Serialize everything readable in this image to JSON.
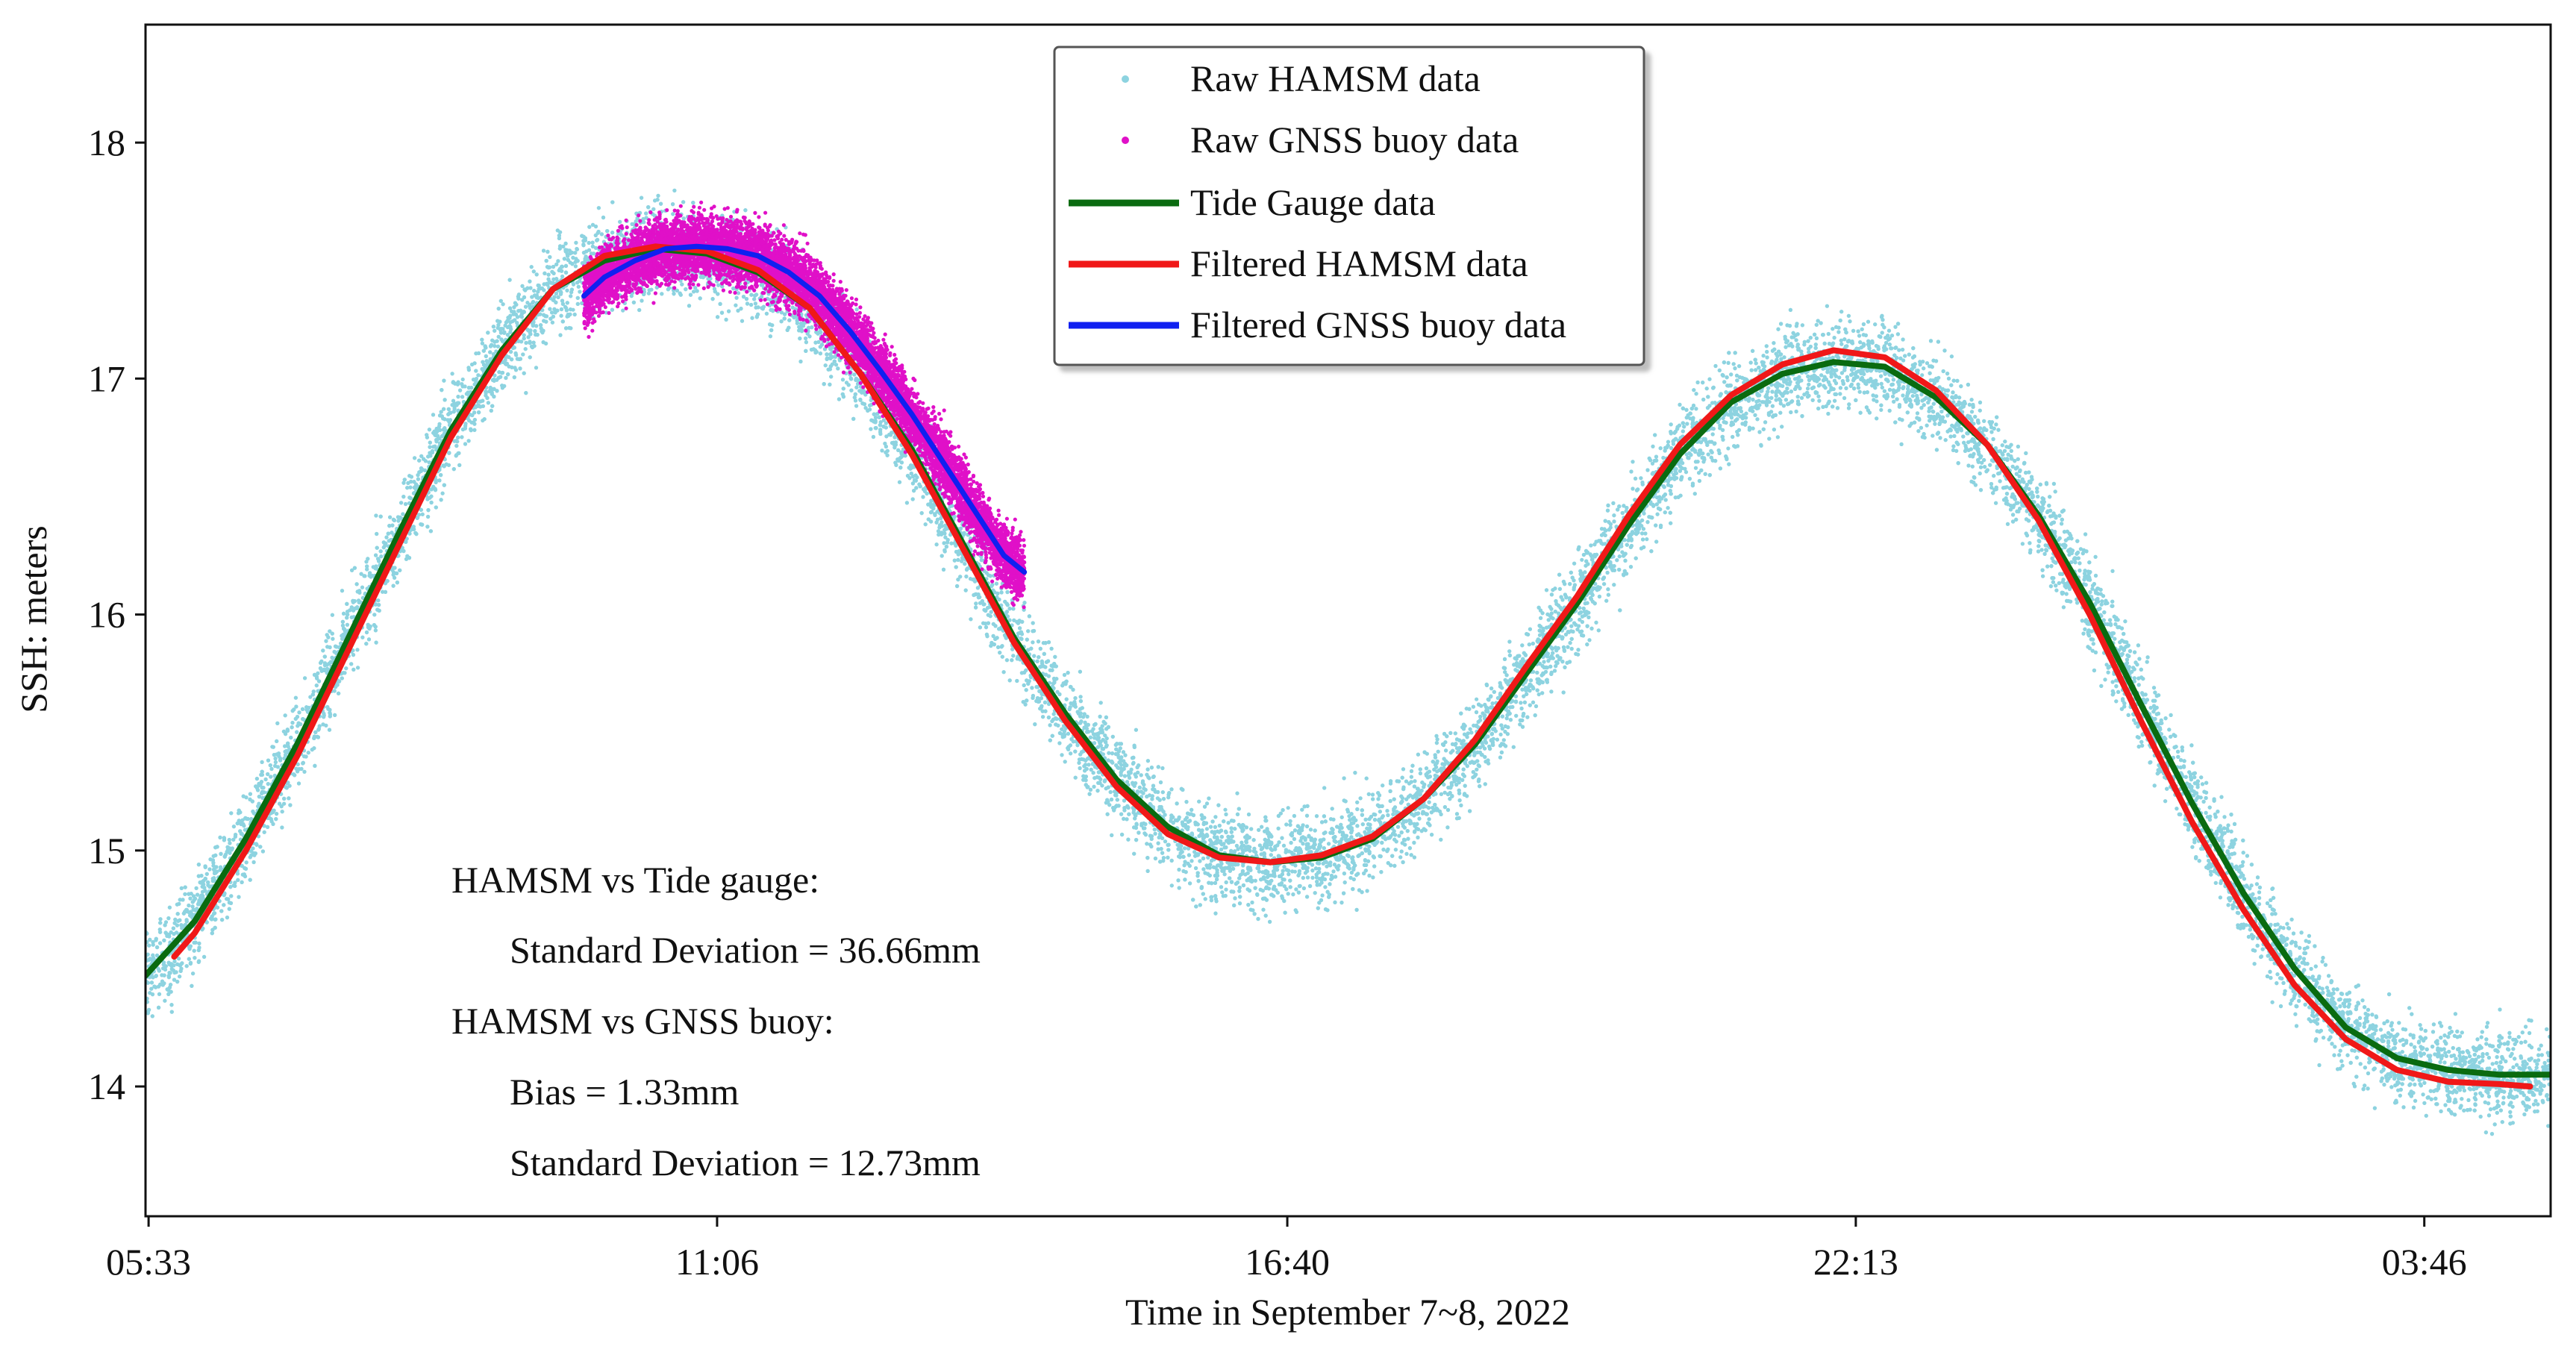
{
  "chart_data": {
    "type": "scatter",
    "xlabel": "Time in September 7~8, 2022",
    "ylabel": "SSH: meters",
    "x_ticks": [
      "05:33",
      "11:06",
      "16:40",
      "22:13",
      "03:46"
    ],
    "x_tick_hours": [
      5.55,
      11.1,
      16.6667,
      22.2167,
      27.7667
    ],
    "xlim_hours": [
      5.52,
      29.0
    ],
    "y_ticks": [
      14,
      15,
      16,
      17,
      18
    ],
    "ylim": [
      13.45,
      18.5
    ],
    "grid": false,
    "legend_position": "top-center",
    "legend": {
      "raw_hamsm": "Raw HAMSM data",
      "raw_gnss": "Raw GNSS buoy data",
      "tide_gauge": "Tide Gauge data",
      "filtered_hamsm": "Filtered HAMSM data",
      "filtered_gnss": "Filtered GNSS buoy data"
    },
    "colors": {
      "raw_hamsm": "#8dd3e0",
      "raw_gnss": "#e010c8",
      "tide_gauge": "#0a6b10",
      "filtered_hamsm": "#f01818",
      "filtered_gnss": "#1020f0"
    },
    "series": [
      {
        "name": "Tide Gauge data",
        "x_hours": [
          5.52,
          6.0,
          6.5,
          7.0,
          7.5,
          8.0,
          8.5,
          9.0,
          9.5,
          10.0,
          10.5,
          11.0,
          11.5,
          12.0,
          12.5,
          13.0,
          13.5,
          14.0,
          14.5,
          15.0,
          15.5,
          16.0,
          16.5,
          17.0,
          17.5,
          18.0,
          18.5,
          19.0,
          19.5,
          20.0,
          20.5,
          21.0,
          21.5,
          22.0,
          22.5,
          23.0,
          23.5,
          24.0,
          24.5,
          25.0,
          25.5,
          26.0,
          26.5,
          27.0,
          27.5,
          28.0,
          28.5,
          29.0
        ],
        "values": [
          14.47,
          14.7,
          15.05,
          15.45,
          15.9,
          16.35,
          16.78,
          17.12,
          17.38,
          17.5,
          17.55,
          17.53,
          17.45,
          17.3,
          17.02,
          16.7,
          16.3,
          15.9,
          15.58,
          15.3,
          15.1,
          14.98,
          14.95,
          14.97,
          15.05,
          15.22,
          15.45,
          15.75,
          16.05,
          16.38,
          16.68,
          16.9,
          17.02,
          17.07,
          17.05,
          16.92,
          16.72,
          16.42,
          16.05,
          15.62,
          15.2,
          14.82,
          14.5,
          14.25,
          14.12,
          14.07,
          14.05,
          14.05
        ]
      },
      {
        "name": "Filtered HAMSM data",
        "x_hours": [
          5.8,
          6.0,
          6.5,
          7.0,
          7.5,
          8.0,
          8.5,
          9.0,
          9.5,
          10.0,
          10.5,
          11.0,
          11.5,
          12.0,
          12.5,
          13.0,
          13.5,
          14.0,
          14.5,
          15.0,
          15.5,
          16.0,
          16.5,
          17.0,
          17.5,
          18.0,
          18.5,
          19.0,
          19.5,
          20.0,
          20.5,
          21.0,
          21.5,
          22.0,
          22.5,
          23.0,
          23.5,
          24.0,
          24.5,
          25.0,
          25.5,
          26.0,
          26.5,
          27.0,
          27.5,
          28.0,
          28.5,
          28.8
        ],
        "values": [
          14.55,
          14.65,
          15.0,
          15.4,
          15.85,
          16.3,
          16.75,
          17.1,
          17.38,
          17.52,
          17.56,
          17.54,
          17.46,
          17.3,
          17.02,
          16.68,
          16.28,
          15.88,
          15.55,
          15.27,
          15.07,
          14.97,
          14.95,
          14.98,
          15.06,
          15.22,
          15.47,
          15.78,
          16.08,
          16.42,
          16.72,
          16.93,
          17.06,
          17.12,
          17.09,
          16.95,
          16.72,
          16.4,
          16.0,
          15.55,
          15.12,
          14.75,
          14.43,
          14.2,
          14.07,
          14.02,
          14.01,
          14.0
        ]
      },
      {
        "name": "Filtered GNSS buoy data",
        "x_hours": [
          9.8,
          10.0,
          10.3,
          10.6,
          10.9,
          11.2,
          11.5,
          11.8,
          12.1,
          12.4,
          12.7,
          13.0,
          13.3,
          13.6,
          13.9,
          14.1
        ],
        "values": [
          17.35,
          17.43,
          17.5,
          17.55,
          17.56,
          17.55,
          17.52,
          17.45,
          17.35,
          17.2,
          17.03,
          16.85,
          16.65,
          16.45,
          16.25,
          16.18
        ]
      }
    ],
    "scatter_spread_m": {
      "raw_hamsm": 0.27,
      "raw_gnss": 0.17
    },
    "gnss_range_hours": [
      9.8,
      14.1
    ],
    "annotations": [
      "HAMSM vs Tide gauge:",
      "Standard Deviation = 36.66mm",
      "HAMSM vs GNSS buoy:",
      "Bias = 1.33mm",
      "Standard Deviation = 12.73mm"
    ]
  }
}
